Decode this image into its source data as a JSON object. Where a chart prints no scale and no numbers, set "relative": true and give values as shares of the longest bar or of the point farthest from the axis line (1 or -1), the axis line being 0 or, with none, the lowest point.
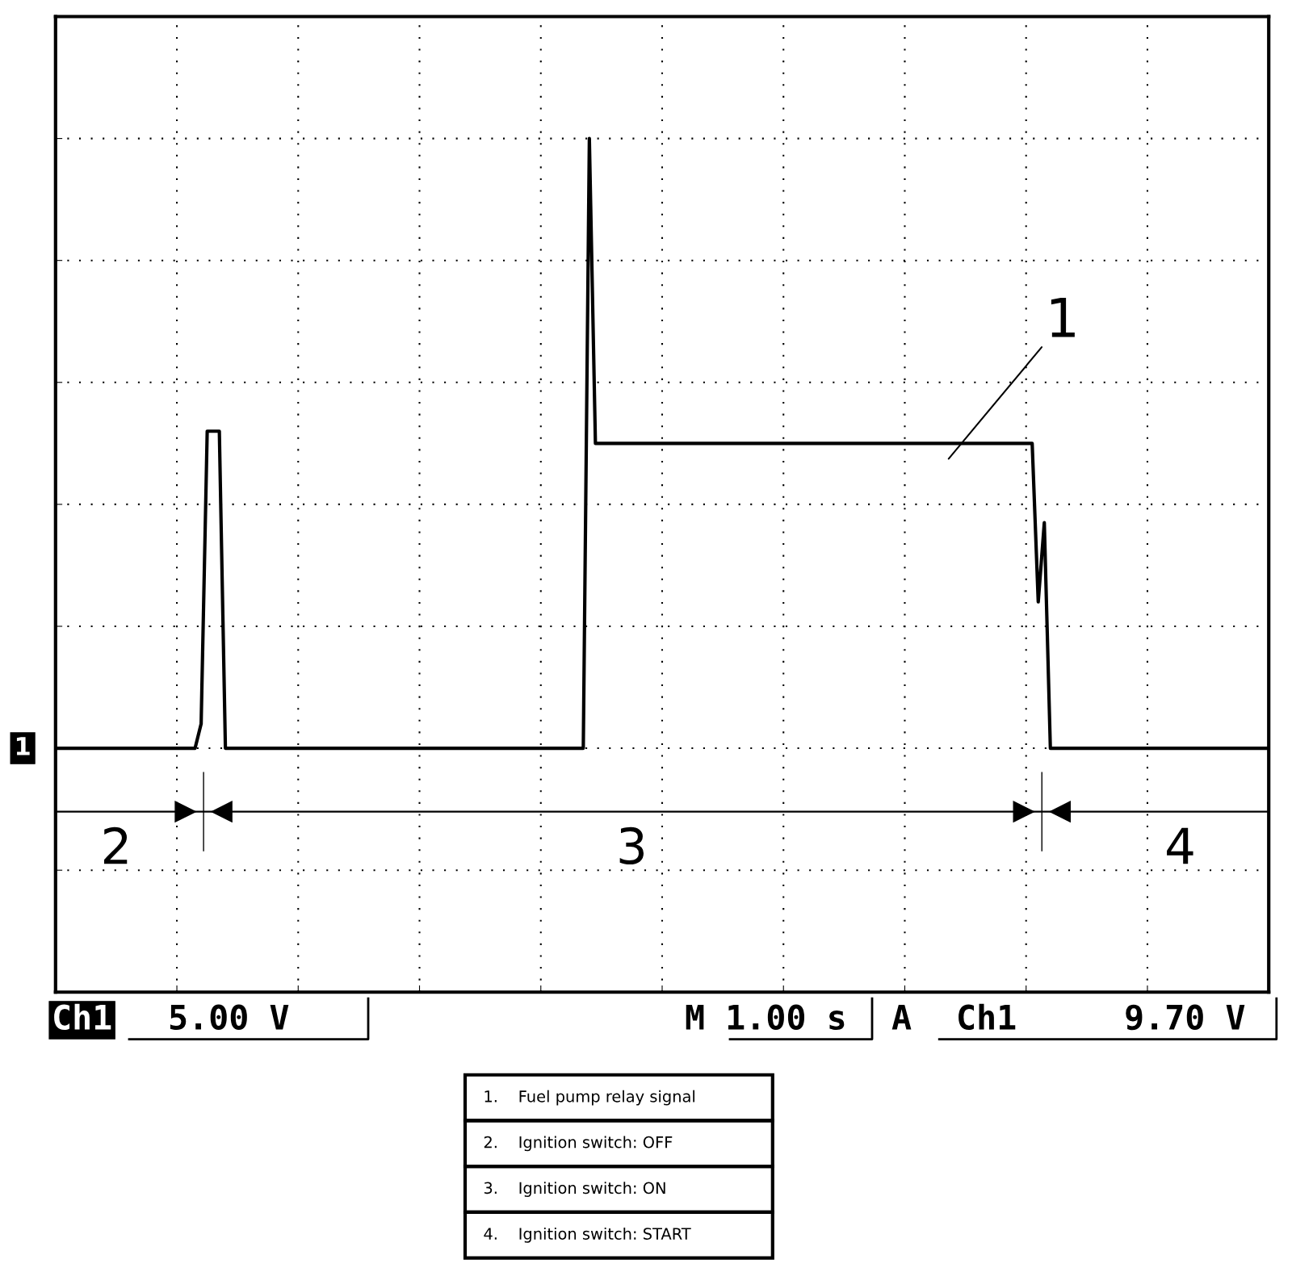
{
  "chart_data": {
    "type": "line",
    "relative": true,
    "grid": true,
    "line_style": "solid",
    "marker": "none",
    "categories": [
      null,
      null,
      null,
      null,
      null,
      null,
      null,
      null,
      null,
      null,
      null,
      null,
      null,
      null,
      null,
      null,
      null,
      null,
      null,
      null,
      null,
      null,
      null,
      null,
      null,
      null,
      null,
      null,
      null,
      null,
      null,
      null,
      null,
      null,
      null,
      null,
      null,
      null,
      null,
      null,
      null,
      null,
      null,
      null,
      null,
      null,
      null,
      null,
      null,
      null,
      null,
      null,
      null,
      null,
      null,
      null,
      null,
      null,
      null,
      null,
      null,
      null,
      null,
      null,
      null,
      null,
      null,
      null,
      null,
      null,
      null,
      null,
      null,
      null,
      null,
      null,
      null,
      null,
      null,
      null,
      null,
      null,
      null,
      null,
      null,
      null,
      null,
      null,
      null,
      null,
      null,
      null,
      null,
      null,
      null,
      null,
      null,
      null,
      null,
      null,
      null,
      null,
      null,
      null,
      null,
      null,
      null,
      null,
      null,
      null,
      null,
      null,
      null,
      null,
      null,
      null,
      null,
      null,
      null,
      null,
      null,
      null,
      null,
      null,
      null,
      null,
      null,
      null,
      null,
      null,
      null,
      null,
      null,
      null,
      null,
      null,
      null,
      null,
      null,
      null,
      null,
      null,
      null,
      null,
      null,
      null,
      null,
      null,
      null,
      null,
      null,
      null,
      null,
      null,
      null,
      null,
      null,
      null,
      null,
      null,
      null,
      null,
      null,
      null,
      null,
      null,
      null,
      null,
      null,
      null,
      null,
      null,
      null,
      null,
      null,
      null,
      null,
      null,
      null,
      null,
      null,
      null,
      null,
      null,
      null,
      null,
      null,
      null,
      null,
      null,
      null,
      null,
      null,
      null,
      null,
      null,
      null,
      null,
      null,
      null,
      null
    ],
    "series": [
      {
        "color": "#000000",
        "values": [
          0,
          0,
          0,
          0,
          0,
          0,
          0,
          0,
          0,
          0,
          0,
          0,
          0,
          0,
          0,
          0,
          0,
          0,
          0,
          0,
          0,
          0,
          0,
          0,
          0.04,
          0.52,
          0.52,
          0.52,
          0,
          0,
          0,
          0,
          0,
          0,
          0,
          0,
          0,
          0,
          0,
          0,
          0,
          0,
          0,
          0,
          0,
          0,
          0,
          0,
          0,
          0,
          0,
          0,
          0,
          0,
          0,
          0,
          0,
          0,
          0,
          0,
          0,
          0,
          0,
          0,
          0,
          0,
          0,
          0,
          0,
          0,
          0,
          0,
          0,
          0,
          0,
          0,
          0,
          0,
          0,
          0,
          0,
          0,
          0,
          0,
          0,
          0,
          0,
          0,
          1,
          0.5,
          0.5,
          0.5,
          0.5,
          0.5,
          0.5,
          0.5,
          0.5,
          0.5,
          0.5,
          0.5,
          0.5,
          0.5,
          0.5,
          0.5,
          0.5,
          0.5,
          0.5,
          0.5,
          0.5,
          0.5,
          0.5,
          0.5,
          0.5,
          0.5,
          0.5,
          0.5,
          0.5,
          0.5,
          0.5,
          0.5,
          0.5,
          0.5,
          0.5,
          0.5,
          0.5,
          0.5,
          0.5,
          0.5,
          0.5,
          0.5,
          0.5,
          0.5,
          0.5,
          0.5,
          0.5,
          0.5,
          0.5,
          0.5,
          0.5,
          0.5,
          0.5,
          0.5,
          0.5,
          0.5,
          0.5,
          0.5,
          0.5,
          0.5,
          0.5,
          0.5,
          0.5,
          0.5,
          0.5,
          0.5,
          0.5,
          0.5,
          0.5,
          0.5,
          0.5,
          0.5,
          0.5,
          0.5,
          0.24,
          0.37,
          0,
          0,
          0,
          0,
          0,
          0,
          0,
          0,
          0,
          0,
          0,
          0,
          0,
          0,
          0,
          0,
          0,
          0,
          0,
          0,
          0,
          0,
          0,
          0,
          0,
          0,
          0,
          0,
          0,
          0,
          0,
          0,
          0,
          0,
          0,
          0,
          0
        ]
      }
    ],
    "annotations": [
      "1",
      "1",
      "2",
      "3",
      "4",
      "Ch1",
      "5.00 V",
      "M 1.00 s",
      "A",
      "Ch1",
      "9.70 V",
      "1.    Fuel pump relay signal",
      "2.    Ignition switch: OFF",
      "3.    Ignition switch: ON",
      "4.    Ignition switch: START"
    ]
  }
}
